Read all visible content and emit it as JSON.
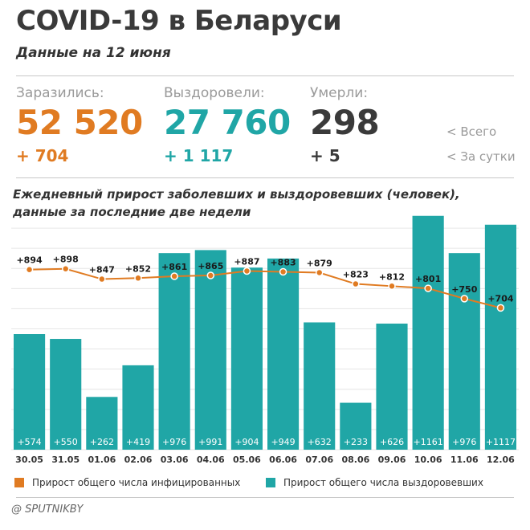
{
  "header": {
    "title": "COVID-19 в Беларуси",
    "subtitle": "Данные на 12 июня"
  },
  "stats": [
    {
      "label": "Заразились:",
      "total": "52 520",
      "delta": "+ 704",
      "color": "#e07b22"
    },
    {
      "label": "Выздоровели:",
      "total": "27 760",
      "delta": "+ 1 117",
      "color": "#20a6a6"
    },
    {
      "label": "Умерли:",
      "total": "298",
      "delta": "+ 5",
      "color": "#3a3a3a"
    }
  ],
  "notes": {
    "total": "<  Всего",
    "daily": "<  За сутки"
  },
  "chart_title": "Ежедневный прирост заболевших и выздоровевших (человек), данные за последние две недели",
  "chart_data": {
    "type": "bar",
    "categories": [
      "30.05",
      "31.05",
      "01.06",
      "02.06",
      "03.06",
      "04.06",
      "05.06",
      "06.06",
      "07.06",
      "08.06",
      "09.06",
      "10.06",
      "11.06",
      "12.06"
    ],
    "series": [
      {
        "name": "Прирост общего числа выздоровевших",
        "type": "bar",
        "color": "#20a6a6",
        "values": [
          574,
          550,
          262,
          419,
          976,
          991,
          904,
          949,
          632,
          233,
          626,
          1161,
          976,
          1117
        ],
        "labels": [
          "+574",
          "+550",
          "+262",
          "+419",
          "+976",
          "+991",
          "+904",
          "+949",
          "+632",
          "+233",
          "+626",
          "+1161",
          "+976",
          "+1117"
        ]
      },
      {
        "name": "Прирост общего числа инфицированных",
        "type": "line",
        "color": "#e07b22",
        "values": [
          894,
          898,
          847,
          852,
          861,
          865,
          887,
          883,
          879,
          823,
          812,
          801,
          750,
          704
        ],
        "labels": [
          "+894",
          "+898",
          "+847",
          "+852",
          "+861",
          "+865",
          "+887",
          "+883",
          "+879",
          "+823",
          "+812",
          "+801",
          "+750",
          "+704"
        ]
      }
    ],
    "ylim": [
      0,
      1180
    ],
    "grid": true,
    "legend_position": "bottom"
  },
  "legend": {
    "infected": "Прирост общего числа инфицированных",
    "recovered": "Прирост общего числа выздоровевших",
    "infected_color": "#e07b22",
    "recovered_color": "#20a6a6"
  },
  "source": "@ SPUTNIKBY"
}
